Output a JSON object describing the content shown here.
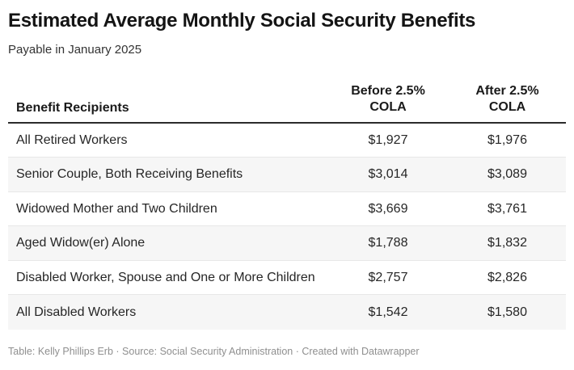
{
  "header": {
    "title": "Estimated Average Monthly Social Security Benefits",
    "subtitle": "Payable in January 2025"
  },
  "table": {
    "header": {
      "recipients": "Benefit Recipients",
      "before_line1": "Before 2.5%",
      "before_line2": "COLA",
      "after_line1": "After 2.5%",
      "after_line2": "COLA"
    },
    "rows": [
      {
        "label": "All Retired Workers",
        "before": "$1,927",
        "after": "$1,976"
      },
      {
        "label": "Senior Couple, Both Receiving Benefits",
        "before": "$3,014",
        "after": "$3,089"
      },
      {
        "label": "Widowed Mother and Two Children",
        "before": "$3,669",
        "after": "$3,761"
      },
      {
        "label": "Aged Widow(er) Alone",
        "before": "$1,788",
        "after": "$1,832"
      },
      {
        "label": "Disabled Worker, Spouse and One or More Children",
        "before": "$2,757",
        "after": "$2,826"
      },
      {
        "label": "All Disabled Workers",
        "before": "$1,542",
        "after": "$1,580"
      }
    ]
  },
  "footer": {
    "attribution": "Table: Kelly Phillips Erb · Source: Social Security Administration · Created with Datawrapper"
  },
  "colors": {
    "stripe": "#f6f6f6",
    "header_rule": "#2b2b2b",
    "row_divider": "#e8e8e8",
    "footer_text": "#8f8f8f"
  },
  "chart_data": {
    "type": "table",
    "title": "Estimated Average Monthly Social Security Benefits",
    "subtitle": "Payable in January 2025",
    "columns": [
      "Benefit Recipients",
      "Before 2.5% COLA",
      "After 2.5% COLA"
    ],
    "rows": [
      [
        "All Retired Workers",
        "$1,927",
        "$1,976"
      ],
      [
        "Senior Couple, Both Receiving Benefits",
        "$3,014",
        "$3,089"
      ],
      [
        "Widowed Mother and Two Children",
        "$3,669",
        "$3,761"
      ],
      [
        "Aged Widow(er) Alone",
        "$1,788",
        "$1,832"
      ],
      [
        "Disabled Worker, Spouse and One or More Children",
        "$2,757",
        "$2,826"
      ],
      [
        "All Disabled Workers",
        "$1,542",
        "$1,580"
      ]
    ],
    "footnote": "Table: Kelly Phillips Erb · Source: Social Security Administration · Created with Datawrapper",
    "layout_hints": {
      "striped_rows": true,
      "stripe_on": "even rows (2,4,6)",
      "numeric_columns_alignment": "center",
      "header_rule": "2px solid dark under header row"
    }
  }
}
